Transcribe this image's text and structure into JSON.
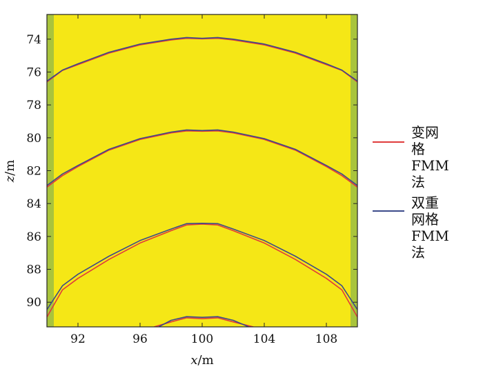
{
  "chart_data": {
    "type": "line",
    "xlabel": {
      "var": "x",
      "unit": "/m"
    },
    "ylabel": {
      "var": "z",
      "unit": "/m"
    },
    "xlim": [
      90,
      110
    ],
    "ylim": [
      91.5,
      72.5
    ],
    "y_inverted": true,
    "xticks": [
      92,
      96,
      100,
      104,
      108
    ],
    "yticks": [
      74,
      76,
      78,
      80,
      82,
      84,
      86,
      88,
      90
    ],
    "grid": false,
    "legend_position": "right",
    "colors": {
      "background": "#f5e716",
      "edge_band": "#a9c43c",
      "series_red": "#e03a3a",
      "series_blue": "#3b4a8a"
    },
    "series": [
      {
        "name": "变网格\nFMM法",
        "color": "#e03a3a",
        "curves": [
          [
            [
              90,
              76.6
            ],
            [
              91,
              75.9
            ],
            [
              92,
              75.55
            ],
            [
              94,
              74.85
            ],
            [
              96,
              74.35
            ],
            [
              98,
              74.05
            ],
            [
              99,
              73.95
            ],
            [
              100,
              73.98
            ],
            [
              101,
              73.95
            ],
            [
              102,
              74.05
            ],
            [
              104,
              74.35
            ],
            [
              106,
              74.85
            ],
            [
              108,
              75.55
            ],
            [
              109,
              75.9
            ],
            [
              110,
              76.6
            ]
          ],
          [
            [
              90,
              83.0
            ],
            [
              91,
              82.3
            ],
            [
              92,
              81.75
            ],
            [
              94,
              80.75
            ],
            [
              96,
              80.1
            ],
            [
              98,
              79.7
            ],
            [
              99,
              79.58
            ],
            [
              100,
              79.6
            ],
            [
              101,
              79.58
            ],
            [
              102,
              79.7
            ],
            [
              104,
              80.1
            ],
            [
              106,
              80.75
            ],
            [
              108,
              81.75
            ],
            [
              109,
              82.3
            ],
            [
              110,
              83.0
            ]
          ],
          [
            [
              90,
              90.9
            ],
            [
              91,
              89.25
            ],
            [
              92,
              88.55
            ],
            [
              94,
              87.4
            ],
            [
              96,
              86.4
            ],
            [
              98,
              85.65
            ],
            [
              99,
              85.3
            ],
            [
              100,
              85.25
            ],
            [
              101,
              85.3
            ],
            [
              102,
              85.65
            ],
            [
              104,
              86.4
            ],
            [
              106,
              87.4
            ],
            [
              108,
              88.55
            ],
            [
              109,
              89.25
            ],
            [
              110,
              90.9
            ]
          ],
          [
            [
              96.9,
              91.5
            ],
            [
              98,
              91.2
            ],
            [
              99,
              90.95
            ],
            [
              100,
              91.0
            ],
            [
              101,
              90.95
            ],
            [
              102,
              91.2
            ],
            [
              103.3,
              91.5
            ]
          ]
        ]
      },
      {
        "name": "双重网格\nFMM法",
        "color": "#3b4a8a",
        "curves": [
          [
            [
              90,
              76.55
            ],
            [
              91,
              75.88
            ],
            [
              92,
              75.5
            ],
            [
              94,
              74.8
            ],
            [
              96,
              74.3
            ],
            [
              98,
              74.0
            ],
            [
              99,
              73.9
            ],
            [
              100,
              73.95
            ],
            [
              101,
              73.9
            ],
            [
              102,
              74.0
            ],
            [
              104,
              74.3
            ],
            [
              106,
              74.8
            ],
            [
              108,
              75.5
            ],
            [
              109,
              75.88
            ],
            [
              110,
              76.55
            ]
          ],
          [
            [
              90,
              82.9
            ],
            [
              91,
              82.2
            ],
            [
              92,
              81.68
            ],
            [
              94,
              80.7
            ],
            [
              96,
              80.05
            ],
            [
              98,
              79.65
            ],
            [
              99,
              79.52
            ],
            [
              100,
              79.56
            ],
            [
              101,
              79.52
            ],
            [
              102,
              79.65
            ],
            [
              104,
              80.05
            ],
            [
              106,
              80.7
            ],
            [
              108,
              81.68
            ],
            [
              109,
              82.2
            ],
            [
              110,
              82.9
            ]
          ],
          [
            [
              90,
              90.45
            ],
            [
              91,
              89.0
            ],
            [
              92,
              88.3
            ],
            [
              94,
              87.2
            ],
            [
              96,
              86.25
            ],
            [
              98,
              85.55
            ],
            [
              99,
              85.22
            ],
            [
              100,
              85.2
            ],
            [
              101,
              85.22
            ],
            [
              102,
              85.55
            ],
            [
              104,
              86.25
            ],
            [
              106,
              87.2
            ],
            [
              108,
              88.3
            ],
            [
              109,
              89.0
            ],
            [
              110,
              90.45
            ]
          ],
          [
            [
              97.2,
              91.5
            ],
            [
              98,
              91.1
            ],
            [
              99,
              90.88
            ],
            [
              100,
              90.92
            ],
            [
              101,
              90.88
            ],
            [
              102,
              91.1
            ],
            [
              103,
              91.5
            ]
          ]
        ]
      }
    ]
  }
}
